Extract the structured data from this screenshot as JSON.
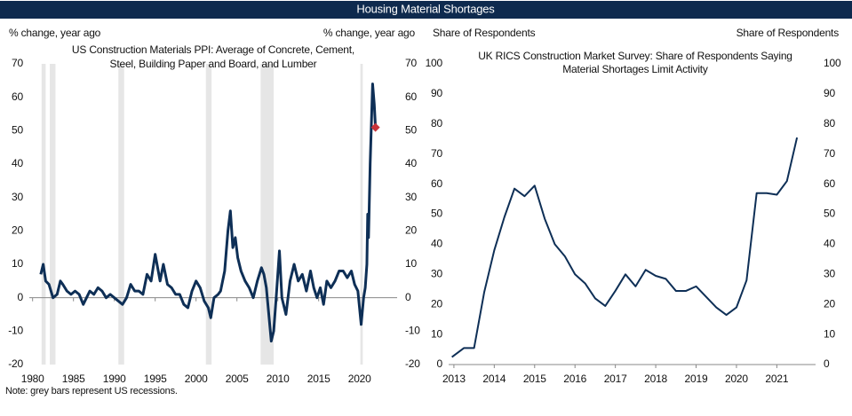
{
  "header": {
    "title": "Housing Material Shortages"
  },
  "note": "Note: grey bars represent US recessions.",
  "chart_data": [
    {
      "type": "line",
      "title": [
        "US Construction Materials PPI: Average of Concrete, Cement,",
        "Steel, Building Paper and Board, and Lumber"
      ],
      "ylabel": "% change, year ago",
      "y2label": "% change, year ago",
      "xlim": [
        1979.6,
        2024.6
      ],
      "xticks": [
        1980,
        1985,
        1990,
        1995,
        2000,
        2005,
        2010,
        2015,
        2020
      ],
      "ylim": [
        -20,
        70
      ],
      "yticks": [
        -20,
        -10,
        0,
        10,
        20,
        30,
        40,
        50,
        60,
        70
      ],
      "y2lim": [
        -20,
        70
      ],
      "y2ticks": [
        -20,
        -10,
        0,
        10,
        20,
        30,
        40,
        50,
        60,
        70
      ],
      "recessions": [
        [
          1981.1,
          1981.6
        ],
        [
          1982.1,
          1982.8
        ],
        [
          1990.5,
          1991.2
        ],
        [
          2001.2,
          2001.9
        ],
        [
          2007.9,
          2009.5
        ],
        [
          2020.1,
          2020.4
        ]
      ],
      "recession_color": "#e6e6e6",
      "x": [
        1981.0,
        1981.3,
        1981.6,
        1982.0,
        1982.5,
        1983.0,
        1983.4,
        1983.7,
        1984.2,
        1984.7,
        1985.2,
        1985.7,
        1986.2,
        1986.6,
        1987.0,
        1987.5,
        1988.0,
        1988.5,
        1989.0,
        1989.5,
        1990.0,
        1990.5,
        1991.0,
        1991.5,
        1992.0,
        1992.5,
        1993.0,
        1993.5,
        1994.0,
        1994.5,
        1995.0,
        1995.3,
        1995.6,
        1996.0,
        1996.5,
        1997.0,
        1997.5,
        1998.0,
        1998.5,
        1999.0,
        1999.5,
        2000.0,
        2000.5,
        2001.0,
        2001.5,
        2001.8,
        2002.2,
        2002.7,
        2003.0,
        2003.5,
        2003.9,
        2004.2,
        2004.5,
        2004.8,
        2005.1,
        2005.5,
        2006.0,
        2006.5,
        2007.0,
        2007.5,
        2008.0,
        2008.3,
        2008.6,
        2008.9,
        2009.2,
        2009.5,
        2009.8,
        2010.2,
        2010.5,
        2011.0,
        2011.5,
        2012.0,
        2012.5,
        2013.0,
        2013.5,
        2014.0,
        2014.4,
        2014.8,
        2015.2,
        2015.6,
        2016.0,
        2016.5,
        2017.0,
        2017.5,
        2018.0,
        2018.5,
        2019.0,
        2019.4,
        2019.8,
        2020.2,
        2020.5,
        2020.7,
        2020.9,
        2021.0,
        2021.1,
        2021.3,
        2021.45,
        2021.6,
        2021.8,
        2021.95
      ],
      "series": [
        {
          "color": "#0e2f56",
          "values": [
            7,
            10,
            5,
            4,
            0,
            1,
            5,
            4,
            2,
            1,
            2,
            1,
            -2,
            0,
            2,
            1,
            3,
            2,
            0,
            1,
            0,
            -1,
            -2,
            0,
            4,
            2,
            2,
            1,
            7,
            5,
            13,
            9,
            5,
            10,
            4,
            3,
            1,
            1,
            -2,
            -3,
            2,
            5,
            3,
            -1,
            -3,
            -6,
            0,
            1,
            2,
            8,
            20,
            26,
            15,
            18,
            12,
            8,
            5,
            3,
            0,
            5,
            9,
            7,
            3,
            -5,
            -13,
            -10,
            0,
            14,
            0,
            -5,
            5,
            10,
            5,
            7,
            2,
            8,
            3,
            0,
            3,
            -2,
            5,
            3,
            5,
            8,
            8,
            6,
            8,
            4,
            2,
            -8,
            0,
            3,
            10,
            25,
            18,
            40,
            52,
            64,
            58,
            51
          ]
        }
      ],
      "highlight": {
        "x": 2021.95,
        "y": 51,
        "color": "#c8333a"
      }
    },
    {
      "type": "line",
      "title": [
        "UK RICS Construction Market Survey: Share of Respondents Saying",
        "Material Shortages Limit Activity"
      ],
      "ylabel": "Share of Respondents",
      "y2label": "Share of Respondents",
      "xlim": [
        2012.87,
        2021.96
      ],
      "xticks": [
        2013,
        2014,
        2015,
        2016,
        2017,
        2018,
        2019,
        2020,
        2021
      ],
      "ylim": [
        0,
        100
      ],
      "yticks": [
        0,
        10,
        20,
        30,
        40,
        50,
        60,
        70,
        80,
        90,
        100
      ],
      "y2lim": [
        0,
        100
      ],
      "y2ticks": [
        0,
        10,
        20,
        30,
        40,
        50,
        60,
        70,
        80,
        90,
        100
      ],
      "x": [
        2012.95,
        2013.25,
        2013.5,
        2013.75,
        2014.0,
        2014.25,
        2014.5,
        2014.75,
        2015.0,
        2015.25,
        2015.5,
        2015.75,
        2016.0,
        2016.25,
        2016.5,
        2016.75,
        2017.0,
        2017.25,
        2017.5,
        2017.75,
        2018.0,
        2018.25,
        2018.5,
        2018.75,
        2019.0,
        2019.25,
        2019.5,
        2019.75,
        2020.0,
        2020.25,
        2020.5,
        2020.75,
        2021.0,
        2021.25,
        2021.5
      ],
      "series": [
        {
          "color": "#0e2f56",
          "values": [
            2.5,
            5.5,
            5.5,
            24,
            38,
            49,
            58.5,
            56,
            59.5,
            48.5,
            40,
            36,
            30,
            27,
            22,
            19.5,
            24.5,
            30,
            26,
            31.5,
            29.5,
            28.5,
            24.5,
            24.5,
            26,
            22.5,
            19,
            16.5,
            19,
            28,
            57,
            57,
            56.5,
            61,
            75.5
          ]
        }
      ]
    }
  ]
}
